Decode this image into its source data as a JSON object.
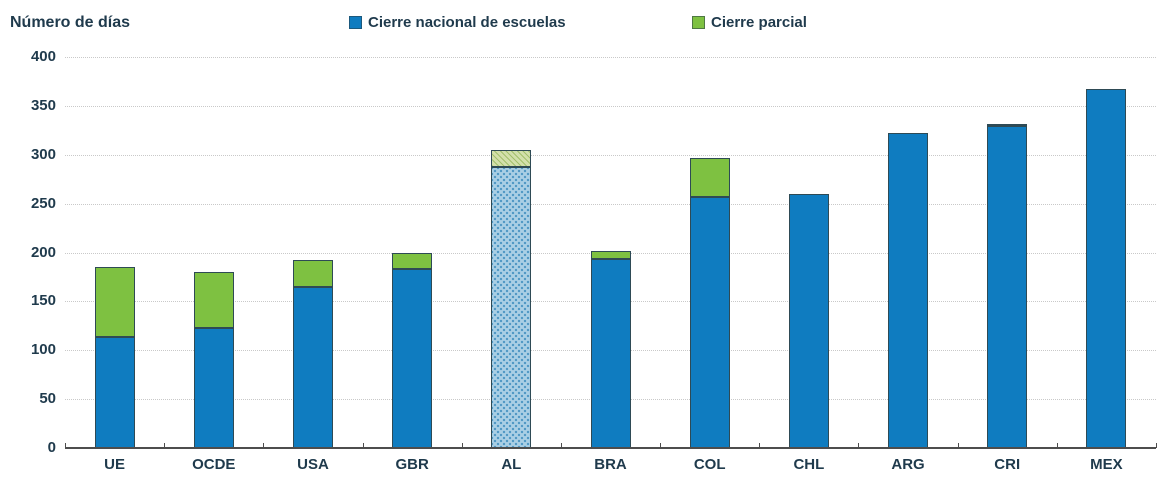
{
  "title": "Número de días",
  "legend": [
    {
      "id": "nacional",
      "label": "Cierre nacional de escuelas",
      "color": "#0f7cc0"
    },
    {
      "id": "parcial",
      "label": "Cierre parcial",
      "color": "#7ec141"
    }
  ],
  "chart_data": {
    "type": "bar",
    "stacked": true,
    "title": "Número de días",
    "xlabel": "",
    "ylabel": "Número de días",
    "categories": [
      "UE",
      "OCDE",
      "USA",
      "GBR",
      "AL",
      "BRA",
      "COL",
      "CHL",
      "ARG",
      "CRI",
      "MEX"
    ],
    "series": [
      {
        "name": "Cierre nacional de escuelas",
        "color": "#0f7cc0",
        "values": [
          114,
          123,
          165,
          183,
          287,
          193,
          257,
          260,
          322,
          329,
          367
        ]
      },
      {
        "name": "Cierre parcial",
        "color": "#7ec141",
        "values": [
          71,
          57,
          27,
          16,
          18,
          9,
          40,
          0,
          0,
          2,
          0
        ]
      }
    ],
    "totals": [
      185,
      180,
      192,
      199,
      305,
      202,
      297,
      260,
      322,
      331,
      367
    ],
    "hatched_categories": [
      "AL"
    ],
    "ylim": [
      0,
      400
    ],
    "yticks": [
      0,
      50,
      100,
      150,
      200,
      250,
      300,
      350,
      400
    ],
    "grid": "horizontal-dotted",
    "legend_position": "top"
  }
}
